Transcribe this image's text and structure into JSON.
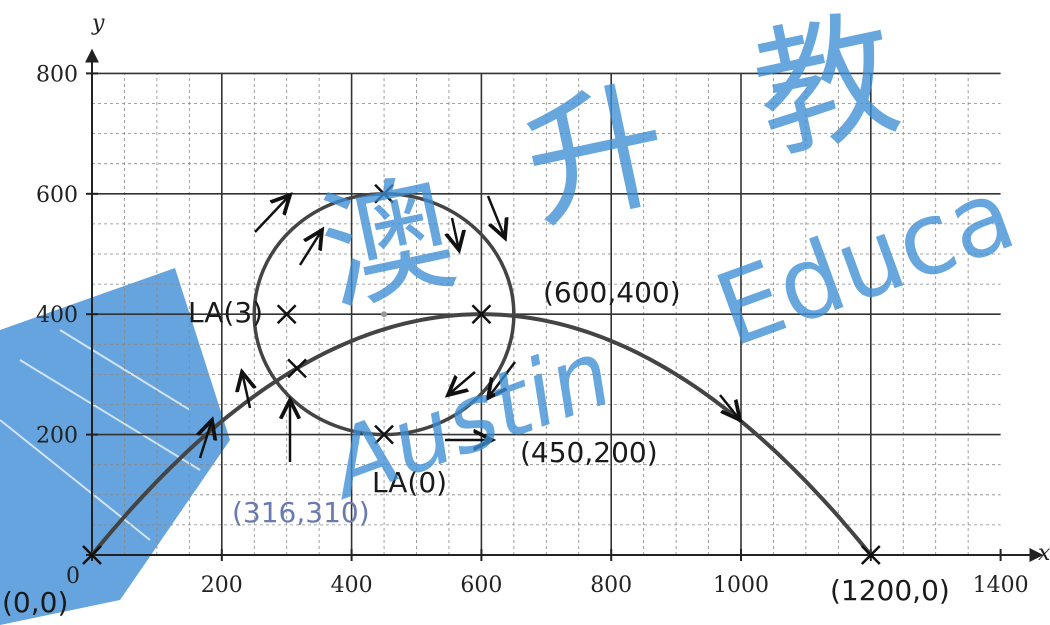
{
  "chart_data": {
    "type": "line",
    "xlabel": "x",
    "ylabel": "y",
    "xlim": [
      0,
      1400
    ],
    "ylim": [
      0,
      800
    ],
    "x_major_ticks": [
      0,
      200,
      400,
      600,
      800,
      1000,
      1200,
      1400
    ],
    "y_major_ticks": [
      0,
      200,
      400,
      600,
      800
    ],
    "x_tick_labels": [
      "200",
      "400",
      "600",
      "800",
      "1000",
      "1400"
    ],
    "y_tick_labels": [
      "800",
      "600",
      "400",
      "200"
    ],
    "origin_label": "0",
    "grid": true,
    "series": [
      {
        "kind": "parabola",
        "x": [
          0,
          200,
          316,
          450,
          600,
          800,
          1000,
          1200
        ],
        "y": [
          0,
          222,
          310,
          375,
          400,
          356,
          222,
          0
        ]
      },
      {
        "kind": "circle",
        "center": [
          450,
          400
        ],
        "radius": 200,
        "x": [
          450,
          600,
          450,
          300,
          450
        ],
        "y": [
          600,
          400,
          200,
          400,
          600
        ]
      }
    ],
    "annotations": [
      {
        "text": "(0,0)",
        "x": 0,
        "y": 0
      },
      {
        "text": "(600,400)",
        "x": 600,
        "y": 400
      },
      {
        "text": "(450,200)",
        "x": 450,
        "y": 200
      },
      {
        "text": "(316,310)",
        "x": 316,
        "y": 310
      },
      {
        "text": "(1200,0)",
        "x": 1200,
        "y": 0
      },
      {
        "text": "LA(0)",
        "x": 450,
        "y": 200
      },
      {
        "text": "LA(3)",
        "x": 300,
        "y": 400
      }
    ]
  },
  "watermark": {
    "chinese": [
      "澳",
      "升",
      "教"
    ],
    "latin_1": "Austin",
    "latin_2": "Educa",
    "color": "#3d8fd6"
  }
}
